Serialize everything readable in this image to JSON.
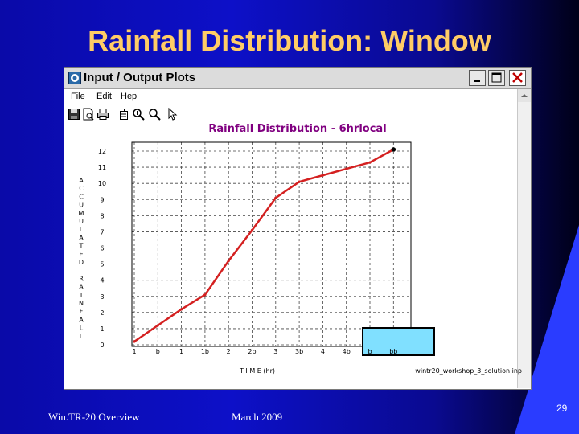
{
  "slide": {
    "title": "Rainfall Distribution: Window",
    "footer_left": "Win.TR-20 Overview",
    "footer_center": "March 2009",
    "page_number": "29"
  },
  "window": {
    "title": "Input / Output Plots",
    "menu": [
      "File",
      "Edit",
      "Hep"
    ],
    "toolbar_icons": [
      "save-icon",
      "print-preview-icon",
      "print-icon",
      "copy-icon",
      "zoom-in-icon",
      "zoom-out-icon",
      "pointer-icon"
    ]
  },
  "chart_data": {
    "type": "line",
    "title": "Rainfall Distribution - 6hrlocal",
    "xlabel": "T I M E (hr)",
    "ylabel": "A C C U M U L A T E D   R A I N F A L L",
    "ylabel_letters": [
      "A",
      "C",
      "C",
      "U",
      "M",
      "U",
      "L",
      "A",
      "T",
      "E",
      "D",
      "",
      "R",
      "A",
      "I",
      "N",
      "F",
      "A",
      "L",
      "L"
    ],
    "x_tick_labels": [
      "1",
      "b",
      "1",
      "1b",
      "2",
      "2b",
      "3",
      "3b",
      "4",
      "4b",
      "b",
      "bb"
    ],
    "y_tick_labels": [
      "0",
      "1",
      "2",
      "3",
      "4",
      "5",
      "6",
      "7",
      "8",
      "9",
      "10",
      "11",
      "12"
    ],
    "ylim": [
      0,
      12
    ],
    "grid": true,
    "line_color": "#d42020",
    "source_label": "wintr20_workshop_3_solution.inp",
    "x": [
      0,
      1,
      2,
      3,
      4,
      5,
      6,
      7,
      8,
      9,
      10,
      11
    ],
    "series": [
      {
        "values": [
          0.2,
          1.2,
          2.2,
          3.1,
          5.2,
          7.1,
          9.1,
          10.1,
          10.5,
          10.9,
          11.3,
          12.1
        ]
      }
    ]
  }
}
